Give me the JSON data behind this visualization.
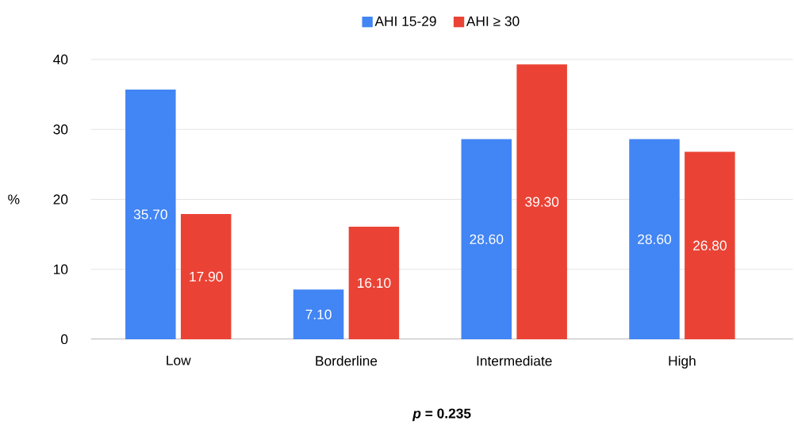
{
  "chart_data": {
    "type": "bar",
    "xlabel": "*p* = 0.235",
    "ylabel": "%",
    "categories": [
      "Low",
      "Borderline",
      "Intermediate",
      "High"
    ],
    "series": [
      {
        "name": "AHI 15-29",
        "color": "#4285f4",
        "values": [
          35.7,
          7.1,
          28.6,
          28.6
        ],
        "value_labels": [
          "35.70",
          "7.10",
          "28.60",
          "28.60"
        ]
      },
      {
        "name": "AHI ≥ 30",
        "color": "#ea4335",
        "values": [
          17.9,
          16.1,
          39.3,
          26.8
        ],
        "value_labels": [
          "17.90",
          "16.10",
          "39.30",
          "26.80"
        ]
      }
    ],
    "ylim": [
      0,
      40
    ],
    "yticks": [
      0,
      10,
      20,
      30,
      40
    ],
    "grid": "y",
    "legend": "top"
  }
}
